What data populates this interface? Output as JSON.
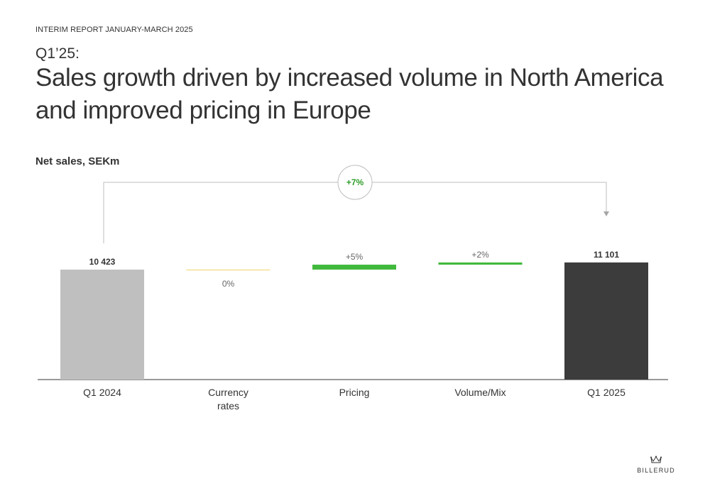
{
  "header": {
    "eyebrow": "INTERIM REPORT JANUARY-MARCH 2025",
    "quarter": "Q1’25:",
    "headline": "Sales growth driven by increased volume in North America and improved pricing in Europe"
  },
  "chart_subtitle": "Net sales, SEKm",
  "logo": {
    "name": "crown-icon",
    "text": "BILLERUD"
  },
  "chart_data": {
    "type": "bar",
    "subtype": "waterfall",
    "categories": [
      "Q1 2024",
      "Currency\nrates",
      "Pricing",
      "Volume/Mix",
      "Q1 2025"
    ],
    "bars": [
      {
        "kind": "total",
        "value": 10423,
        "label": "10 423",
        "color": "#bfbfbf"
      },
      {
        "kind": "delta",
        "value": 0,
        "label": "0%",
        "color": "#f2d36b"
      },
      {
        "kind": "delta",
        "value": 468,
        "label": "+5%",
        "color": "#41b93c"
      },
      {
        "kind": "delta",
        "value": 210,
        "label": "+2%",
        "color": "#41b93c"
      },
      {
        "kind": "total",
        "value": 11101,
        "label": "11 101",
        "color": "#3c3c3c"
      }
    ],
    "growth_callout": {
      "label": "+7%",
      "color": "#2f9e2a"
    },
    "ylim": [
      0,
      11500
    ],
    "grid": false,
    "colors": {
      "axis": "#333333",
      "bracket": "#bdbdbd",
      "label": "#666666"
    }
  }
}
